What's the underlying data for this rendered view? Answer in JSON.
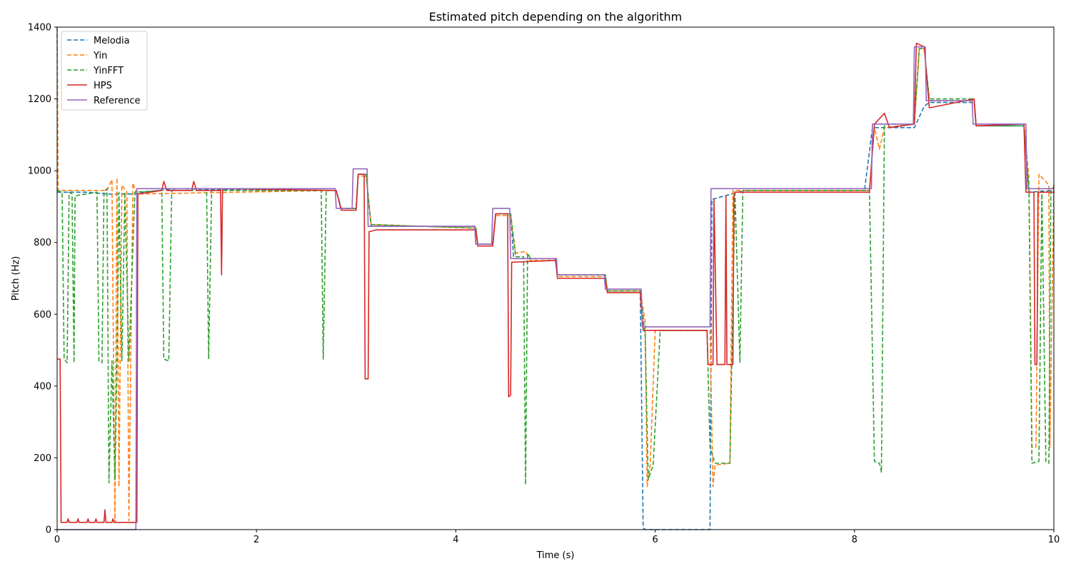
{
  "chart_data": {
    "type": "line",
    "title": "Estimated pitch depending on the algorithm",
    "xlabel": "Time (s)",
    "ylabel": "Pitch (Hz)",
    "xlim": [
      0,
      10
    ],
    "ylim": [
      0,
      1400
    ],
    "xticks": [
      0,
      2,
      4,
      6,
      8,
      10
    ],
    "yticks": [
      0,
      200,
      400,
      600,
      800,
      1000,
      1200,
      1400
    ],
    "grid": false,
    "legend": "upper-left",
    "series": [
      {
        "name": "Melodia",
        "color": "#1f77b4",
        "style": "dashed",
        "points": [
          [
            0,
            940
          ],
          [
            0.3,
            940
          ],
          [
            0.5,
            935
          ],
          [
            0.8,
            935
          ],
          [
            0.85,
            940
          ],
          [
            1.2,
            950
          ],
          [
            2.0,
            945
          ],
          [
            2.8,
            945
          ],
          [
            2.85,
            895
          ],
          [
            3.0,
            895
          ],
          [
            3.02,
            990
          ],
          [
            3.1,
            990
          ],
          [
            3.15,
            845
          ],
          [
            4.2,
            845
          ],
          [
            4.22,
            795
          ],
          [
            4.37,
            795
          ],
          [
            4.4,
            880
          ],
          [
            4.55,
            880
          ],
          [
            4.58,
            755
          ],
          [
            5.0,
            755
          ],
          [
            5.02,
            710
          ],
          [
            5.5,
            710
          ],
          [
            5.52,
            665
          ],
          [
            5.85,
            665
          ],
          [
            5.88,
            5
          ],
          [
            5.9,
            0
          ],
          [
            6.55,
            0
          ],
          [
            6.57,
            920
          ],
          [
            6.7,
            930
          ],
          [
            6.9,
            945
          ],
          [
            8.1,
            945
          ],
          [
            8.18,
            1120
          ],
          [
            8.6,
            1120
          ],
          [
            8.7,
            1180
          ],
          [
            8.75,
            1190
          ],
          [
            9.2,
            1190
          ],
          [
            9.22,
            1125
          ],
          [
            9.7,
            1125
          ],
          [
            9.75,
            940
          ],
          [
            10,
            945
          ]
        ]
      },
      {
        "name": "Yin",
        "color": "#ff7f0e",
        "style": "dashed",
        "points": [
          [
            0,
            1400
          ],
          [
            0.01,
            945
          ],
          [
            0.3,
            945
          ],
          [
            0.5,
            945
          ],
          [
            0.55,
            975
          ],
          [
            0.58,
            20
          ],
          [
            0.6,
            980
          ],
          [
            0.62,
            120
          ],
          [
            0.65,
            960
          ],
          [
            0.7,
            940
          ],
          [
            0.72,
            25
          ],
          [
            0.76,
            965
          ],
          [
            0.8,
            935
          ],
          [
            2.8,
            945
          ],
          [
            2.85,
            890
          ],
          [
            3.0,
            890
          ],
          [
            3.02,
            985
          ],
          [
            3.1,
            985
          ],
          [
            3.15,
            850
          ],
          [
            4.2,
            840
          ],
          [
            4.22,
            795
          ],
          [
            4.37,
            795
          ],
          [
            4.4,
            875
          ],
          [
            4.55,
            875
          ],
          [
            4.6,
            770
          ],
          [
            4.7,
            775
          ],
          [
            4.75,
            750
          ],
          [
            5.0,
            750
          ],
          [
            5.02,
            705
          ],
          [
            5.5,
            705
          ],
          [
            5.52,
            665
          ],
          [
            5.85,
            665
          ],
          [
            5.9,
            580
          ],
          [
            5.92,
            120
          ],
          [
            5.95,
            180
          ],
          [
            6.0,
            555
          ],
          [
            6.55,
            555
          ],
          [
            6.58,
            120
          ],
          [
            6.6,
            180
          ],
          [
            6.75,
            185
          ],
          [
            6.78,
            945
          ],
          [
            8.15,
            945
          ],
          [
            8.2,
            1120
          ],
          [
            8.25,
            1060
          ],
          [
            8.3,
            1120
          ],
          [
            8.6,
            1130
          ],
          [
            8.65,
            1340
          ],
          [
            8.7,
            1340
          ],
          [
            8.75,
            1195
          ],
          [
            9.2,
            1195
          ],
          [
            9.22,
            1125
          ],
          [
            9.7,
            1130
          ],
          [
            9.75,
            980
          ],
          [
            9.78,
            230
          ],
          [
            9.82,
            230
          ],
          [
            9.85,
            990
          ],
          [
            9.95,
            960
          ],
          [
            9.96,
            230
          ],
          [
            10,
            960
          ]
        ]
      },
      {
        "name": "YinFFT",
        "color": "#2ca02c",
        "style": "dashed",
        "points": [
          [
            0,
            945
          ],
          [
            0.05,
            940
          ],
          [
            0.07,
            475
          ],
          [
            0.1,
            465
          ],
          [
            0.12,
            940
          ],
          [
            0.15,
            935
          ],
          [
            0.17,
            465
          ],
          [
            0.18,
            930
          ],
          [
            0.4,
            940
          ],
          [
            0.42,
            470
          ],
          [
            0.45,
            465
          ],
          [
            0.47,
            940
          ],
          [
            0.5,
            950
          ],
          [
            0.52,
            130
          ],
          [
            0.55,
            470
          ],
          [
            0.58,
            140
          ],
          [
            0.6,
            465
          ],
          [
            0.62,
            940
          ],
          [
            0.65,
            470
          ],
          [
            0.68,
            940
          ],
          [
            0.72,
            470
          ],
          [
            0.78,
            940
          ],
          [
            1.05,
            945
          ],
          [
            1.07,
            475
          ],
          [
            1.12,
            470
          ],
          [
            1.15,
            945
          ],
          [
            1.5,
            945
          ],
          [
            1.52,
            475
          ],
          [
            1.55,
            945
          ],
          [
            2.65,
            945
          ],
          [
            2.67,
            475
          ],
          [
            2.7,
            945
          ],
          [
            2.8,
            945
          ],
          [
            2.85,
            895
          ],
          [
            3.0,
            895
          ],
          [
            3.02,
            990
          ],
          [
            3.1,
            990
          ],
          [
            3.15,
            850
          ],
          [
            4.2,
            840
          ],
          [
            4.22,
            795
          ],
          [
            4.37,
            795
          ],
          [
            4.4,
            880
          ],
          [
            4.55,
            880
          ],
          [
            4.6,
            760
          ],
          [
            4.68,
            760
          ],
          [
            4.7,
            125
          ],
          [
            4.72,
            770
          ],
          [
            4.75,
            755
          ],
          [
            5.0,
            755
          ],
          [
            5.02,
            710
          ],
          [
            5.5,
            710
          ],
          [
            5.52,
            665
          ],
          [
            5.85,
            665
          ],
          [
            5.9,
            540
          ],
          [
            5.93,
            140
          ],
          [
            5.98,
            180
          ],
          [
            6.05,
            555
          ],
          [
            6.52,
            555
          ],
          [
            6.55,
            230
          ],
          [
            6.6,
            185
          ],
          [
            6.75,
            185
          ],
          [
            6.8,
            945
          ],
          [
            6.85,
            465
          ],
          [
            6.88,
            945
          ],
          [
            8.15,
            945
          ],
          [
            8.2,
            190
          ],
          [
            8.25,
            185
          ],
          [
            8.27,
            160
          ],
          [
            8.3,
            1130
          ],
          [
            8.6,
            1130
          ],
          [
            8.65,
            1340
          ],
          [
            8.7,
            1340
          ],
          [
            8.75,
            1200
          ],
          [
            9.2,
            1200
          ],
          [
            9.22,
            1125
          ],
          [
            9.7,
            1125
          ],
          [
            9.75,
            945
          ],
          [
            9.78,
            185
          ],
          [
            9.85,
            190
          ],
          [
            9.88,
            945
          ],
          [
            9.92,
            190
          ],
          [
            9.95,
            185
          ],
          [
            9.97,
            945
          ],
          [
            10,
            955
          ]
        ]
      },
      {
        "name": "HPS",
        "color": "#d62728",
        "style": "solid",
        "points": [
          [
            0,
            475
          ],
          [
            0.03,
            475
          ],
          [
            0.04,
            20
          ],
          [
            0.1,
            20
          ],
          [
            0.11,
            30
          ],
          [
            0.12,
            20
          ],
          [
            0.2,
            20
          ],
          [
            0.21,
            30
          ],
          [
            0.22,
            20
          ],
          [
            0.3,
            20
          ],
          [
            0.31,
            30
          ],
          [
            0.32,
            20
          ],
          [
            0.38,
            20
          ],
          [
            0.39,
            30
          ],
          [
            0.4,
            20
          ],
          [
            0.47,
            20
          ],
          [
            0.48,
            55
          ],
          [
            0.49,
            20
          ],
          [
            0.55,
            20
          ],
          [
            0.56,
            30
          ],
          [
            0.57,
            20
          ],
          [
            0.8,
            20
          ],
          [
            0.81,
            935
          ],
          [
            1.05,
            945
          ],
          [
            1.07,
            970
          ],
          [
            1.1,
            945
          ],
          [
            1.35,
            945
          ],
          [
            1.37,
            970
          ],
          [
            1.4,
            945
          ],
          [
            1.64,
            945
          ],
          [
            1.65,
            710
          ],
          [
            1.66,
            950
          ],
          [
            2.8,
            945
          ],
          [
            2.85,
            890
          ],
          [
            3.0,
            890
          ],
          [
            3.02,
            990
          ],
          [
            3.08,
            990
          ],
          [
            3.09,
            420
          ],
          [
            3.12,
            420
          ],
          [
            3.13,
            830
          ],
          [
            3.2,
            835
          ],
          [
            4.2,
            835
          ],
          [
            4.22,
            790
          ],
          [
            4.37,
            790
          ],
          [
            4.4,
            880
          ],
          [
            4.52,
            880
          ],
          [
            4.53,
            370
          ],
          [
            4.55,
            375
          ],
          [
            4.56,
            745
          ],
          [
            5.0,
            750
          ],
          [
            5.02,
            700
          ],
          [
            5.5,
            700
          ],
          [
            5.52,
            660
          ],
          [
            5.85,
            660
          ],
          [
            5.88,
            555
          ],
          [
            6.52,
            555
          ],
          [
            6.53,
            460
          ],
          [
            6.58,
            460
          ],
          [
            6.59,
            920
          ],
          [
            6.62,
            460
          ],
          [
            6.7,
            460
          ],
          [
            6.71,
            930
          ],
          [
            6.72,
            460
          ],
          [
            6.78,
            460
          ],
          [
            6.79,
            930
          ],
          [
            6.8,
            940
          ],
          [
            8.15,
            940
          ],
          [
            8.2,
            1130
          ],
          [
            8.3,
            1160
          ],
          [
            8.35,
            1120
          ],
          [
            8.6,
            1130
          ],
          [
            8.62,
            1355
          ],
          [
            8.7,
            1345
          ],
          [
            8.75,
            1175
          ],
          [
            9.2,
            1200
          ],
          [
            9.22,
            1125
          ],
          [
            9.7,
            1130
          ],
          [
            9.72,
            940
          ],
          [
            9.8,
            940
          ],
          [
            9.81,
            460
          ],
          [
            9.83,
            460
          ],
          [
            9.84,
            940
          ],
          [
            10,
            940
          ]
        ]
      },
      {
        "name": "Reference",
        "color": "#9467bd",
        "style": "solid",
        "points": [
          [
            0,
            0
          ],
          [
            0.79,
            0
          ],
          [
            0.8,
            950
          ],
          [
            2.79,
            950
          ],
          [
            2.8,
            895
          ],
          [
            2.96,
            895
          ],
          [
            2.97,
            1005
          ],
          [
            3.11,
            1005
          ],
          [
            3.12,
            845
          ],
          [
            4.19,
            845
          ],
          [
            4.2,
            795
          ],
          [
            4.36,
            795
          ],
          [
            4.37,
            895
          ],
          [
            4.54,
            895
          ],
          [
            4.55,
            755
          ],
          [
            5.01,
            755
          ],
          [
            5.02,
            710
          ],
          [
            5.49,
            710
          ],
          [
            5.5,
            670
          ],
          [
            5.86,
            670
          ],
          [
            5.87,
            565
          ],
          [
            6.55,
            565
          ],
          [
            6.56,
            950
          ],
          [
            8.17,
            950
          ],
          [
            8.18,
            1130
          ],
          [
            8.59,
            1130
          ],
          [
            8.6,
            1345
          ],
          [
            8.71,
            1345
          ],
          [
            8.72,
            1195
          ],
          [
            9.18,
            1195
          ],
          [
            9.19,
            1130
          ],
          [
            9.72,
            1130
          ],
          [
            9.73,
            950
          ],
          [
            10,
            950
          ]
        ]
      }
    ]
  }
}
